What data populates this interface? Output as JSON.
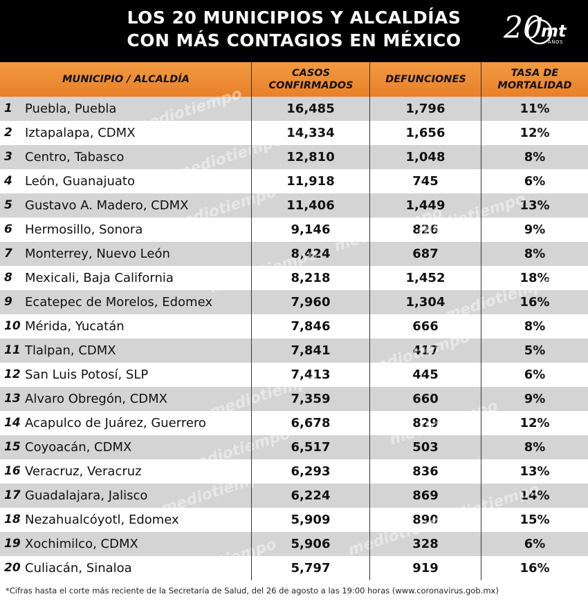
{
  "title_line1": "LOS 20 MUNICIPIOS Y ALCALDÍAS",
  "title_line2": "CON MÁS CONTAGIOS EN MÉXICO",
  "logo": {
    "number": "20",
    "brand": "mt",
    "years": "AÑOS"
  },
  "watermark_text": "mediotiempo",
  "colors": {
    "header_bg": "#000000",
    "column_header_bg": "#f39a40",
    "row_shaded": "#d4d4d4"
  },
  "chart_data": {
    "type": "table",
    "columns": [
      "MUNICIPIO / ALCALDÍA",
      "CASOS\nCONFIRMADOS",
      "DEFUNCIONES",
      "TASA DE\nMORTALIDAD"
    ],
    "rows": [
      {
        "rank": "1",
        "name": "Puebla, Puebla",
        "casos": "16,485",
        "defunciones": "1,796",
        "tasa": "11%"
      },
      {
        "rank": "2",
        "name": "Iztapalapa, CDMX",
        "casos": "14,334",
        "defunciones": "1,656",
        "tasa": "12%"
      },
      {
        "rank": "3",
        "name": "Centro, Tabasco",
        "casos": "12,810",
        "defunciones": "1,048",
        "tasa": "8%"
      },
      {
        "rank": "4",
        "name": "León, Guanajuato",
        "casos": "11,918",
        "defunciones": "745",
        "tasa": "6%"
      },
      {
        "rank": "5",
        "name": "Gustavo A. Madero, CDMX",
        "casos": "11,406",
        "defunciones": "1,449",
        "tasa": "13%"
      },
      {
        "rank": "6",
        "name": "Hermosillo, Sonora",
        "casos": "9,146",
        "defunciones": "826",
        "tasa": "9%"
      },
      {
        "rank": "7",
        "name": "Monterrey, Nuevo León",
        "casos": "8,424",
        "defunciones": "687",
        "tasa": "8%"
      },
      {
        "rank": "8",
        "name": "Mexicali, Baja California",
        "casos": "8,218",
        "defunciones": "1,452",
        "tasa": "18%"
      },
      {
        "rank": "9",
        "name": "Ecatepec de Morelos, Edomex",
        "casos": "7,960",
        "defunciones": "1,304",
        "tasa": "16%"
      },
      {
        "rank": "10",
        "name": "Mérida, Yucatán",
        "casos": "7,846",
        "defunciones": "666",
        "tasa": "8%"
      },
      {
        "rank": "11",
        "name": "Tlalpan, CDMX",
        "casos": "7,841",
        "defunciones": "417",
        "tasa": "5%"
      },
      {
        "rank": "12",
        "name": "San Luis Potosí, SLP",
        "casos": "7,413",
        "defunciones": "445",
        "tasa": "6%"
      },
      {
        "rank": "13",
        "name": "Alvaro Obregón, CDMX",
        "casos": "7,359",
        "defunciones": "660",
        "tasa": "9%"
      },
      {
        "rank": "14",
        "name": "Acapulco de Juárez, Guerrero",
        "casos": "6,678",
        "defunciones": "829",
        "tasa": "12%"
      },
      {
        "rank": "15",
        "name": "Coyoacán, CDMX",
        "casos": "6,517",
        "defunciones": "503",
        "tasa": "8%"
      },
      {
        "rank": "16",
        "name": "Veracruz, Veracruz",
        "casos": "6,293",
        "defunciones": "836",
        "tasa": "13%"
      },
      {
        "rank": "17",
        "name": "Guadalajara, Jalisco",
        "casos": "6,224",
        "defunciones": "869",
        "tasa": "14%"
      },
      {
        "rank": "18",
        "name": "Nezahualcóyotl, Edomex",
        "casos": "5,909",
        "defunciones": "890",
        "tasa": "15%"
      },
      {
        "rank": "19",
        "name": "Xochimilco, CDMX",
        "casos": "5,906",
        "defunciones": "328",
        "tasa": "6%"
      },
      {
        "rank": "20",
        "name": "Culiacán, Sinaloa",
        "casos": "5,797",
        "defunciones": "919",
        "tasa": "16%"
      }
    ]
  },
  "footnote": "*Cifras hasta el corte más reciente de la Secretaría de Salud, del 26 de agosto a las 19:00 horas (www.coronavirus.gob.mx)"
}
